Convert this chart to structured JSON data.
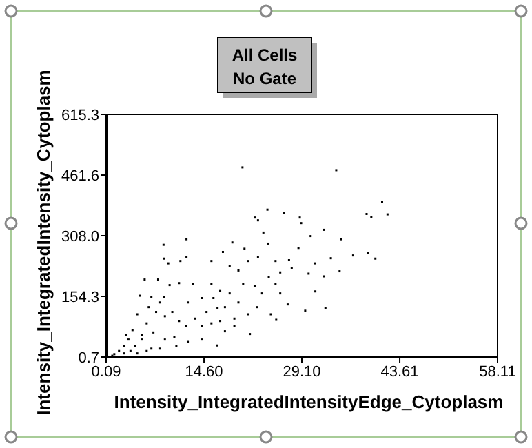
{
  "chart_data": {
    "type": "scatter",
    "title": "All Cells",
    "subtitle": "No Gate",
    "xlabel": "Intensity_IntegratedIntensityEdge_Cytoplasm",
    "ylabel": "Intensity_IntegratedIntensity_Cytoplasm",
    "xlim": [
      0.09,
      58.11
    ],
    "ylim": [
      0.7,
      615.3
    ],
    "xticks": [
      0.09,
      {
        "value": 14.6,
        "label": "14.60"
      },
      {
        "value": 29.1,
        "label": "29.10"
      },
      43.61,
      58.11
    ],
    "yticks": [
      0.7,
      154.3,
      {
        "value": 308,
        "label": "308.0"
      },
      461.6,
      615.3
    ],
    "grid": false,
    "marker": "square",
    "series": [
      {
        "color": "#000000",
        "x": [
          20.3,
          34.2,
          41.0,
          38.7,
          39.4,
          41.8,
          24.0,
          26.4,
          28.8,
          22.2,
          22.6,
          29.0,
          32.4,
          30.4,
          34.9,
          8.6,
          12.0,
          18.8,
          23.4,
          24.1,
          20.6,
          28.6,
          33.4,
          36.7,
          38.9,
          40.0,
          8.7,
          11.1,
          12.0,
          9.3,
          15.7,
          17.4,
          22.6,
          27.2,
          25.2,
          31.0,
          34.7,
          32.4,
          30.1,
          31.1,
          27.0,
          29.6,
          32.6,
          25.3,
          16.5,
          21.4,
          17.7,
          19.1,
          16.6,
          14.3,
          13.0,
          10.9,
          9.5,
          7.8,
          5.8,
          8.7,
          6.8,
          5.1,
          7.5,
          9.9,
          11.9,
          14.3,
          8.1,
          10.2,
          6.1,
          4.7,
          4.0,
          3.4,
          2.7,
          2.0,
          1.3,
          1.0,
          5.4,
          6.8,
          4.4,
          3.7,
          2.7,
          6.1,
          4.7,
          5.4,
          3.0,
          12.2,
          14.97,
          16.0,
          17.0,
          18.4,
          19.7,
          20.4,
          22.1,
          23.2,
          24.2,
          25.2,
          25.9,
          22.5,
          24.5,
          21.1,
          19.1,
          17.7,
          15.7,
          13.3,
          10.9,
          8.8,
          14.3,
          17.0,
          12.2,
          10.5,
          8.8,
          7.1,
          6.4,
          8.1,
          15.7,
          19.7,
          18.4,
          21.1,
          25.9,
          27.6
        ],
        "values": [
          481,
          474,
          393,
          363,
          356,
          362,
          374,
          365,
          354,
          354,
          347,
          340,
          323,
          307,
          299,
          285,
          299,
          291,
          316,
          288,
          275,
          277,
          251,
          258,
          264,
          250,
          250,
          244,
          253,
          238,
          244,
          267,
          254,
          246,
          244,
          238,
          218,
          205,
          212,
          167,
          134,
          118,
          125,
          95,
          30,
          59,
          66,
          98,
          125,
          150,
          185,
          188,
          183,
          197,
          197,
          153,
          153,
          156,
          115,
          115,
          80,
          45,
          22,
          51,
          86,
          109,
          69,
          45,
          28,
          16,
          8,
          4,
          45,
          22,
          28,
          16,
          10,
          16,
          10,
          57,
          57,
          139,
          115,
          150,
          168,
          162,
          139,
          185,
          180,
          162,
          203,
          185,
          162,
          127,
          109,
          109,
          80,
          127,
          86,
          98,
          92,
          104,
          80,
          92,
          39,
          28,
          45,
          63,
          127,
          139,
          185,
          220,
          232,
          244,
          215,
          226
        ]
      }
    ]
  }
}
